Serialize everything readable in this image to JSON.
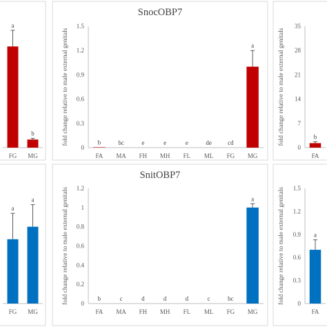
{
  "colors": {
    "red": "#c00000",
    "blue": "#0070c0"
  },
  "chart_data": [
    {
      "type": "bar",
      "row": "top",
      "panel": "left",
      "title": "",
      "ylabel": "",
      "categories": [
        "FG",
        "MG"
      ],
      "values": [
        1.25,
        0.1
      ],
      "errors": [
        0.2,
        0.015
      ],
      "sig": [
        "a",
        "b"
      ],
      "ylim": [
        0,
        1.5
      ],
      "yticks": [],
      "color": "red"
    },
    {
      "type": "bar",
      "row": "top",
      "panel": "middle",
      "title": "SnocOBP7",
      "ylabel": "fold change relative to male external genitals",
      "categories": [
        "FA",
        "MA",
        "FH",
        "MH",
        "FL",
        "ML",
        "FG",
        "MG"
      ],
      "values": [
        0.005,
        0,
        0,
        0,
        0,
        0,
        0,
        1.0
      ],
      "errors": [
        0,
        0,
        0,
        0,
        0,
        0,
        0,
        0.2
      ],
      "sig": [
        "b",
        "bc",
        "e",
        "e",
        "e",
        "de",
        "cd",
        "a"
      ],
      "ylim": [
        0,
        1.5
      ],
      "yticks": [
        "0",
        "0.3",
        "0.6",
        "0.9",
        "1.2",
        "1.5"
      ],
      "color": "red"
    },
    {
      "type": "bar",
      "row": "top",
      "panel": "right",
      "title": "",
      "ylabel": "fold change relative to male external genitals",
      "categories": [
        "FA"
      ],
      "values": [
        1.3
      ],
      "errors": [
        0.4
      ],
      "sig": [
        "b"
      ],
      "ylim": [
        0,
        35
      ],
      "yticks": [
        "0",
        "7",
        "14",
        "21",
        "28",
        "35"
      ],
      "color": "red"
    },
    {
      "type": "bar",
      "row": "bottom",
      "panel": "left",
      "title": "",
      "ylabel": "",
      "categories": [
        "FG",
        "MG"
      ],
      "values": [
        0.67,
        0.8
      ],
      "errors": [
        0.27,
        0.23
      ],
      "sig": [
        "a",
        "a"
      ],
      "ylim": [
        0,
        1.2
      ],
      "yticks": [],
      "color": "blue"
    },
    {
      "type": "bar",
      "row": "bottom",
      "panel": "middle",
      "title": "SnitOBP7",
      "ylabel": "fold change relative to male external genitals",
      "categories": [
        "FA",
        "MA",
        "FH",
        "MH",
        "FL",
        "ML",
        "FG",
        "MG"
      ],
      "values": [
        0,
        0,
        0,
        0,
        0,
        0,
        0,
        1.0
      ],
      "errors": [
        0,
        0,
        0,
        0,
        0,
        0,
        0,
        0.04
      ],
      "sig": [
        "b",
        "c",
        "d",
        "d",
        "d",
        "c",
        "bc",
        "a"
      ],
      "ylim": [
        0,
        1.2
      ],
      "yticks": [
        "0",
        "0.2",
        "0.4",
        "0.6",
        "0.8",
        "1",
        "1.2"
      ],
      "color": "blue"
    },
    {
      "type": "bar",
      "row": "bottom",
      "panel": "right",
      "title": "",
      "ylabel": "fold change relative to male external genitals",
      "categories": [
        "FA"
      ],
      "values": [
        0.7
      ],
      "errors": [
        0.13
      ],
      "sig": [
        "a"
      ],
      "ylim": [
        0,
        1.5
      ],
      "yticks": [
        "0",
        "0.3",
        "0.6",
        "0.9",
        "1.2",
        "1.5"
      ],
      "color": "blue"
    }
  ]
}
